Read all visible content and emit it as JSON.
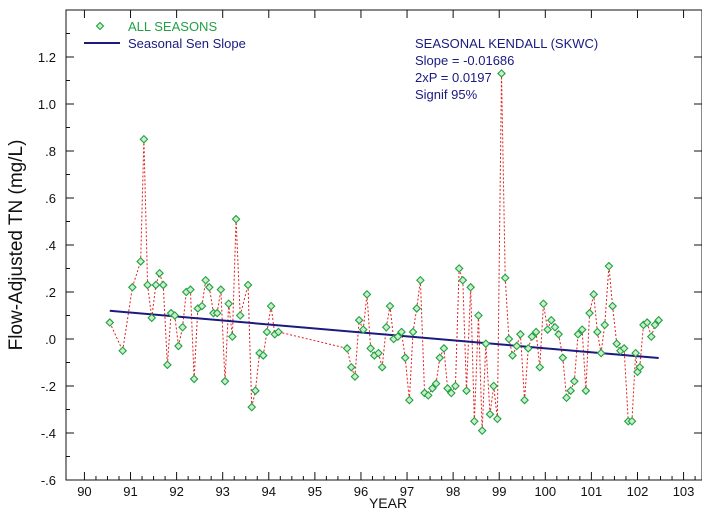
{
  "colors": {
    "observed": "#22a045",
    "observed_fill": "#c8f0c8",
    "connector": "#e02020",
    "trend": "#1a1a80",
    "stats": "#1a1a80",
    "axes": "#111111"
  },
  "legend": {
    "observed_label": "ALL SEASONS",
    "trend_label": "Seasonal Sen Slope"
  },
  "stats": {
    "title": "SEASONAL KENDALL (SKWC)",
    "slope": "Slope = -0.01686",
    "pvalue": "2xP = 0.0197",
    "signif": "Signif 95%"
  },
  "chart_data": {
    "type": "scatter",
    "title": "",
    "xlabel": "YEAR",
    "ylabel": "Flow-Adjusted TN (mg/L)",
    "xlim": [
      89.6,
      103.4
    ],
    "ylim": [
      -0.6,
      1.4
    ],
    "grid": false,
    "legend_position": "top-left",
    "x_ticks": [
      90,
      91,
      92,
      93,
      94,
      95,
      96,
      97,
      98,
      99,
      100,
      101,
      102,
      103
    ],
    "x_tick_labels": [
      "90",
      "91",
      "92",
      "93",
      "94",
      "95",
      "96",
      "97",
      "98",
      "99",
      "100",
      "101",
      "102",
      "103"
    ],
    "y_ticks": [
      -0.6,
      -0.4,
      -0.2,
      0.0,
      0.2,
      0.4,
      0.6,
      0.8,
      1.0,
      1.2
    ],
    "y_tick_labels": [
      "-.6",
      "-.4",
      "-.2",
      ".0",
      ".2",
      ".4",
      ".6",
      ".8",
      "1.0",
      "1.2"
    ],
    "series": [
      {
        "name": "ALL SEASONS",
        "x": [
          90.55,
          90.83,
          91.04,
          91.22,
          91.29,
          91.37,
          91.46,
          91.55,
          91.63,
          91.71,
          91.8,
          91.88,
          91.96,
          92.04,
          92.13,
          92.21,
          92.3,
          92.38,
          92.46,
          92.55,
          92.63,
          92.71,
          92.8,
          92.88,
          92.96,
          93.05,
          93.13,
          93.21,
          93.29,
          93.38,
          93.55,
          93.63,
          93.71,
          93.8,
          93.88,
          93.96,
          94.05,
          94.13,
          94.21,
          95.7,
          95.79,
          95.87,
          95.96,
          96.05,
          96.13,
          96.21,
          96.29,
          96.38,
          96.46,
          96.55,
          96.63,
          96.71,
          96.8,
          96.88,
          96.96,
          97.05,
          97.13,
          97.21,
          97.29,
          97.38,
          97.46,
          97.55,
          97.63,
          97.71,
          97.8,
          97.88,
          97.96,
          98.05,
          98.13,
          98.21,
          98.29,
          98.38,
          98.46,
          98.55,
          98.63,
          98.71,
          98.8,
          98.88,
          98.96,
          99.05,
          99.13,
          99.21,
          99.29,
          99.38,
          99.46,
          99.55,
          99.63,
          99.71,
          99.8,
          99.88,
          99.96,
          100.05,
          100.13,
          100.21,
          100.29,
          100.38,
          100.46,
          100.55,
          100.63,
          100.71,
          100.8,
          100.88,
          100.96,
          101.05,
          101.13,
          101.21,
          101.29,
          101.38,
          101.46,
          101.55,
          101.63,
          101.71,
          101.8,
          101.88,
          101.96,
          102.0,
          102.05,
          102.13,
          102.21,
          102.3,
          102.38,
          102.46
        ],
        "y": [
          0.07,
          -0.05,
          0.22,
          0.33,
          0.85,
          0.23,
          0.09,
          0.23,
          0.28,
          0.23,
          -0.11,
          0.11,
          0.1,
          -0.03,
          0.05,
          0.2,
          0.21,
          -0.17,
          0.13,
          0.14,
          0.25,
          0.22,
          0.11,
          0.11,
          0.21,
          -0.18,
          0.15,
          0.01,
          0.51,
          0.1,
          0.23,
          -0.29,
          -0.22,
          -0.06,
          -0.07,
          0.03,
          0.14,
          0.02,
          0.03,
          -0.04,
          -0.12,
          -0.16,
          0.08,
          0.04,
          0.19,
          -0.04,
          -0.07,
          -0.06,
          -0.12,
          0.05,
          0.14,
          0.0,
          0.01,
          0.03,
          -0.08,
          -0.26,
          0.03,
          0.13,
          0.25,
          -0.23,
          -0.24,
          -0.21,
          -0.19,
          -0.08,
          -0.04,
          -0.21,
          -0.23,
          -0.2,
          0.3,
          0.25,
          -0.22,
          0.22,
          -0.35,
          0.1,
          -0.39,
          -0.02,
          -0.32,
          -0.2,
          -0.34,
          1.13,
          0.26,
          0.0,
          -0.07,
          -0.03,
          0.02,
          -0.26,
          -0.04,
          0.01,
          0.03,
          -0.12,
          0.15,
          0.04,
          0.08,
          0.05,
          0.02,
          -0.08,
          -0.25,
          -0.22,
          -0.18,
          0.02,
          0.04,
          -0.22,
          0.11,
          0.19,
          0.03,
          -0.06,
          0.06,
          0.31,
          0.14,
          -0.02,
          -0.05,
          -0.04,
          -0.35,
          -0.35,
          -0.06,
          -0.14,
          -0.12,
          0.06,
          0.07,
          0.01,
          0.06,
          0.08
        ]
      },
      {
        "name": "Seasonal Sen Slope",
        "x": [
          90.55,
          102.46
        ],
        "y": [
          0.12,
          -0.081
        ]
      }
    ]
  }
}
